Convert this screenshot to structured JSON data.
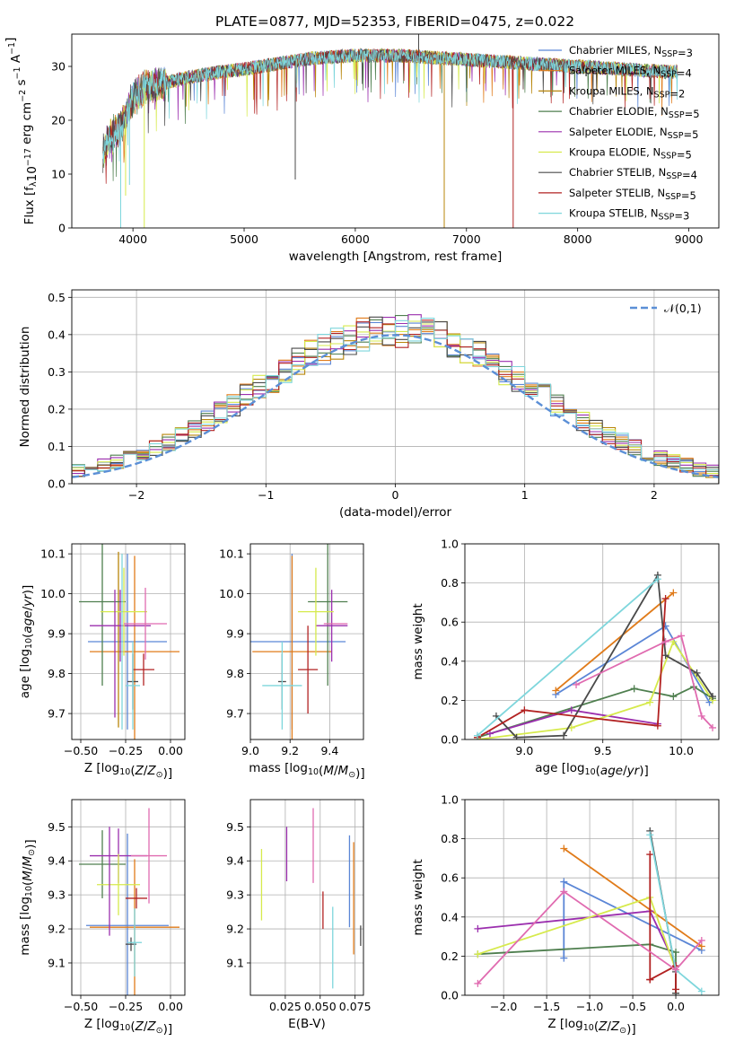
{
  "figure": {
    "title": "PLATE=0877, MJD=52353, FIBERID=0475, z=0.022"
  },
  "models": [
    {
      "name": "Chabrier MILES",
      "nssp": 3,
      "color": "#5b86d6"
    },
    {
      "name": "Salpeter MILES",
      "nssp": 4,
      "color": "#e07b1a"
    },
    {
      "name": "Kroupa MILES",
      "nssp": 2,
      "color": "#b8860b"
    },
    {
      "name": "Chabrier ELODIE",
      "nssp": 5,
      "color": "#4f7f4f"
    },
    {
      "name": "Salpeter ELODIE",
      "nssp": 5,
      "color": "#9b2fae"
    },
    {
      "name": "Kroupa ELODIE",
      "nssp": 5,
      "color": "#d6ea4c"
    },
    {
      "name": "Chabrier STELIB",
      "nssp": 4,
      "color": "#4a4a4a"
    },
    {
      "name": "Salpeter STELIB",
      "nssp": 5,
      "color": "#b22222"
    },
    {
      "name": "Kroupa STELIB",
      "nssp": 3,
      "color": "#7ed6dc"
    }
  ],
  "chart_data": [
    {
      "id": "spectrum",
      "type": "line",
      "xlabel": "wavelength [Angstrom, rest frame]",
      "ylabel": "Flux [f_λ10^-17 erg cm^-2 s^-1 A^-1]",
      "xlim": [
        3450,
        9270
      ],
      "ylim": [
        0,
        36
      ],
      "xticks": [
        4000,
        5000,
        6000,
        7000,
        8000,
        9000
      ],
      "yticks": [
        0,
        10,
        20,
        30
      ],
      "grid": false,
      "legend_position": "top-right",
      "continuum": [
        [
          3730,
          14
        ],
        [
          3800,
          17
        ],
        [
          3900,
          19
        ],
        [
          4000,
          24
        ],
        [
          4100,
          26
        ],
        [
          4300,
          27
        ],
        [
          4500,
          28
        ],
        [
          4800,
          29
        ],
        [
          5000,
          29.5
        ],
        [
          5300,
          30.5
        ],
        [
          5600,
          31.5
        ],
        [
          6000,
          32
        ],
        [
          6400,
          32
        ],
        [
          6800,
          31.5
        ],
        [
          7200,
          31
        ],
        [
          7600,
          30.5
        ],
        [
          8000,
          30
        ],
        [
          8400,
          29.5
        ],
        [
          8800,
          29
        ],
        [
          8900,
          29
        ]
      ],
      "dips": [
        [
          3934,
          6
        ],
        [
          3969,
          8
        ],
        [
          4102,
          0
        ],
        [
          3890,
          0
        ],
        [
          5460,
          9
        ],
        [
          6800,
          0
        ],
        [
          7420,
          0
        ]
      ],
      "spikes": [
        [
          6570,
          36
        ]
      ]
    },
    {
      "id": "residuals",
      "type": "step",
      "xlabel": "(data-model)/error",
      "ylabel": "Normed distribution",
      "xlim": [
        -2.5,
        2.5
      ],
      "ylim": [
        0,
        0.52
      ],
      "xticks": [
        -2,
        -1,
        0,
        1,
        2
      ],
      "yticks": [
        0.0,
        0.1,
        0.2,
        0.3,
        0.4,
        0.5
      ],
      "grid": true,
      "bin_width": 0.1,
      "reference_curve": "𝒩(0,1)",
      "reference_color": "#5b8fd6",
      "legend_position": "top-right"
    },
    {
      "id": "age-vs-Z",
      "type": "errorbar",
      "xlabel": "Z [log10(Z/Z⊙)]",
      "ylabel": "age [log10(age/yr)]",
      "xlim": [
        -0.55,
        0.08
      ],
      "ylim": [
        9.635,
        10.125
      ],
      "xticks": [
        -0.5,
        -0.25,
        0.0
      ],
      "yticks": [
        9.7,
        9.8,
        9.9,
        10.0,
        10.1
      ],
      "grid": true,
      "points": [
        {
          "model": 0,
          "x": -0.24,
          "xerr": 0.22,
          "y": 9.88,
          "yerr": 0.22
        },
        {
          "model": 1,
          "x": -0.2,
          "xerr": 0.25,
          "y": 9.855,
          "yerr": 0.24
        },
        {
          "model": 2,
          "x": -0.29,
          "xerr": 0.0,
          "y": 9.885,
          "yerr": 0.22
        },
        {
          "model": 3,
          "x": -0.38,
          "xerr": 0.13,
          "y": 9.98,
          "yerr": 0.21
        },
        {
          "model": 4,
          "x": -0.28,
          "xerr": 0.17,
          "y": 9.92,
          "yerr": 0.09
        },
        {
          "model": 5,
          "x": -0.26,
          "xerr": 0.13,
          "y": 9.955,
          "yerr": 0.11
        },
        {
          "model": 6,
          "x": -0.21,
          "xerr": 0.03,
          "y": 9.78,
          "yerr": 0.07
        },
        {
          "model": 7,
          "x": -0.15,
          "xerr": 0.06,
          "y": 9.81,
          "yerr": 0.04
        },
        {
          "model": 8,
          "x": -0.21,
          "xerr": 0.04,
          "y": 9.77,
          "yerr": 0.11
        }
      ],
      "extra_points": [
        {
          "model": 4,
          "x": -0.31,
          "xerr": 0.0,
          "y": 9.85,
          "yerr": 0.16
        },
        {
          "model": 8,
          "x": -0.27,
          "xerr": 0.0,
          "y": 9.88,
          "yerr": 0.22
        },
        {
          "model": 9,
          "x": -0.14,
          "xerr": 0.12,
          "y": 9.925,
          "yerr": 0.09
        }
      ]
    },
    {
      "id": "age-vs-mass",
      "type": "errorbar",
      "xlabel": "mass [log10(M/M⊙)]",
      "ylabel": "",
      "xlim": [
        9.0,
        9.57
      ],
      "ylim": [
        9.635,
        10.125
      ],
      "xticks": [
        9.0,
        9.2,
        9.4
      ],
      "yticks": [
        9.7,
        9.8,
        9.9,
        10.0,
        10.1
      ],
      "grid": true,
      "points": [
        {
          "model": 0,
          "x": 9.21,
          "xerr": 0.27,
          "y": 9.88,
          "yerr": 0.22
        },
        {
          "model": 1,
          "x": 9.21,
          "xerr": 0.2,
          "y": 9.855,
          "yerr": 0.24
        },
        {
          "model": 3,
          "x": 9.39,
          "xerr": 0.1,
          "y": 9.98,
          "yerr": 0.21
        },
        {
          "model": 4,
          "x": 9.41,
          "xerr": 0.08,
          "y": 9.92,
          "yerr": 0.09
        },
        {
          "model": 5,
          "x": 9.33,
          "xerr": 0.09,
          "y": 9.955,
          "yerr": 0.11
        },
        {
          "model": 6,
          "x": 9.16,
          "xerr": 0.02,
          "y": 9.78,
          "yerr": 0.07
        },
        {
          "model": 7,
          "x": 9.29,
          "xerr": 0.05,
          "y": 9.81,
          "yerr": 0.11
        },
        {
          "model": 8,
          "x": 9.16,
          "xerr": 0.1,
          "y": 9.77,
          "yerr": 0.11
        }
      ],
      "extra_points": [
        {
          "model": 9,
          "x": 9.43,
          "xerr": 0.06,
          "y": 9.925,
          "yerr": 0.0
        }
      ]
    },
    {
      "id": "mass-weight-vs-age",
      "type": "line",
      "xlabel": "age [log10(age/yr)]",
      "ylabel": "mass weight",
      "xlim": [
        8.62,
        10.24
      ],
      "ylim": [
        0,
        1.0
      ],
      "xticks": [
        9.0,
        9.5,
        10.0
      ],
      "yticks": [
        0.0,
        0.2,
        0.4,
        0.6,
        0.8,
        1.0
      ],
      "grid": true,
      "series": [
        {
          "model": 0,
          "points": [
            [
              9.2,
              0.23
            ],
            [
              9.9,
              0.58
            ],
            [
              10.18,
              0.19
            ]
          ]
        },
        {
          "model": 1,
          "points": [
            [
              9.2,
              0.25
            ],
            [
              9.95,
              0.75
            ]
          ]
        },
        {
          "model": 3,
          "points": [
            [
              8.7,
              0.01
            ],
            [
              9.7,
              0.26
            ],
            [
              9.95,
              0.22
            ],
            [
              10.08,
              0.27
            ],
            [
              10.2,
              0.21
            ]
          ]
        },
        {
          "model": 4,
          "points": [
            [
              8.78,
              0.03
            ],
            [
              9.3,
              0.15
            ],
            [
              9.85,
              0.08
            ]
          ]
        },
        {
          "model": 5,
          "points": [
            [
              8.7,
              0.0
            ],
            [
              9.3,
              0.06
            ],
            [
              9.8,
              0.19
            ],
            [
              9.95,
              0.5
            ],
            [
              10.2,
              0.2
            ]
          ]
        },
        {
          "model": 6,
          "points": [
            [
              8.82,
              0.12
            ],
            [
              8.95,
              0.01
            ],
            [
              9.25,
              0.02
            ],
            [
              9.85,
              0.84
            ],
            [
              9.9,
              0.43
            ],
            [
              10.1,
              0.34
            ],
            [
              10.2,
              0.22
            ]
          ]
        },
        {
          "model": 7,
          "points": [
            [
              8.7,
              0.01
            ],
            [
              9.0,
              0.15
            ],
            [
              9.85,
              0.07
            ],
            [
              9.9,
              0.72
            ]
          ]
        },
        {
          "model": 8,
          "points": [
            [
              8.7,
              0.02
            ],
            [
              9.85,
              0.82
            ]
          ]
        },
        {
          "model": 9,
          "points": [
            [
              9.33,
              0.28
            ],
            [
              9.9,
              0.5
            ],
            [
              10.0,
              0.53
            ],
            [
              10.13,
              0.12
            ],
            [
              10.2,
              0.06
            ]
          ]
        }
      ]
    },
    {
      "id": "mass-vs-Z",
      "type": "errorbar",
      "xlabel": "Z [log10(Z/Z⊙)]",
      "ylabel": "mass [log10(M/M⊙)]",
      "xlim": [
        -0.55,
        0.08
      ],
      "ylim": [
        9.005,
        9.58
      ],
      "xticks": [
        -0.5,
        -0.25,
        0.0
      ],
      "yticks": [
        9.1,
        9.2,
        9.3,
        9.4,
        9.5
      ],
      "grid": true,
      "points": [
        {
          "model": 0,
          "x": -0.24,
          "xerr": 0.23,
          "y": 9.21,
          "yerr": 0.27
        },
        {
          "model": 1,
          "x": -0.2,
          "xerr": 0.25,
          "y": 9.205,
          "yerr": 0.2
        },
        {
          "model": 3,
          "x": -0.38,
          "xerr": 0.13,
          "y": 9.39,
          "yerr": 0.1
        },
        {
          "model": 4,
          "x": -0.29,
          "xerr": 0.16,
          "y": 9.415,
          "yerr": 0.08
        },
        {
          "model": 5,
          "x": -0.29,
          "xerr": 0.12,
          "y": 9.33,
          "yerr": 0.09
        },
        {
          "model": 6,
          "x": -0.22,
          "xerr": 0.03,
          "y": 9.155,
          "yerr": 0.02
        },
        {
          "model": 7,
          "x": -0.19,
          "xerr": 0.06,
          "y": 9.29,
          "yerr": 0.03
        },
        {
          "model": 8,
          "x": -0.2,
          "xerr": 0.04,
          "y": 9.16,
          "yerr": 0.1
        }
      ],
      "extra_points": [
        {
          "model": 4,
          "x": -0.34,
          "xerr": 0.0,
          "y": 9.34,
          "yerr": 0.16
        },
        {
          "model": 9,
          "x": -0.12,
          "xerr": 0.1,
          "y": 9.415,
          "yerr": 0.14
        }
      ]
    },
    {
      "id": "mass-vs-EBV",
      "type": "errorbar",
      "xlabel": "E(B-V)",
      "ylabel": "",
      "xlim": [
        0.0,
        0.081
      ],
      "ylim": [
        9.005,
        9.58
      ],
      "xticks": [
        0.025,
        0.05,
        0.075
      ],
      "yticks": [
        9.1,
        9.2,
        9.3,
        9.4,
        9.5
      ],
      "grid": true,
      "points": [
        {
          "model": 0,
          "x": 0.071,
          "xerr": 0.0,
          "y": 9.34,
          "yerr": 0.135
        },
        {
          "model": 1,
          "x": 0.074,
          "xerr": 0.0,
          "y": 9.29,
          "yerr": 0.165
        },
        {
          "model": 4,
          "x": 0.026,
          "xerr": 0.0,
          "y": 9.42,
          "yerr": 0.08
        },
        {
          "model": 5,
          "x": 0.008,
          "xerr": 0.0,
          "y": 9.33,
          "yerr": 0.105
        },
        {
          "model": 6,
          "x": 0.079,
          "xerr": 0.0,
          "y": 9.18,
          "yerr": 0.03
        },
        {
          "model": 7,
          "x": 0.052,
          "xerr": 0.0,
          "y": 9.255,
          "yerr": 0.055
        },
        {
          "model": 8,
          "x": 0.059,
          "xerr": 0.0,
          "y": 9.145,
          "yerr": 0.12
        }
      ],
      "extra_points": [
        {
          "model": 9,
          "x": 0.045,
          "xerr": 0.0,
          "y": 9.445,
          "yerr": 0.11
        }
      ]
    },
    {
      "id": "mass-weight-vs-Z",
      "type": "line",
      "xlabel": "Z [log10(Z/Z⊙)]",
      "ylabel": "mass weight",
      "xlim": [
        -2.45,
        0.5
      ],
      "ylim": [
        0,
        1.0
      ],
      "xticks": [
        -2.0,
        -1.5,
        -1.0,
        -0.5,
        0.0
      ],
      "yticks": [
        0.0,
        0.2,
        0.4,
        0.6,
        0.8,
        1.0
      ],
      "grid": true,
      "series": [
        {
          "model": 0,
          "points": [
            [
              -1.3,
              0.19
            ],
            [
              -1.3,
              0.58
            ],
            [
              0.3,
              0.23
            ]
          ]
        },
        {
          "model": 1,
          "points": [
            [
              -1.3,
              0.75
            ],
            [
              0.3,
              0.25
            ]
          ]
        },
        {
          "model": 3,
          "points": [
            [
              -2.3,
              0.21
            ],
            [
              -0.3,
              0.26
            ],
            [
              0.0,
              0.22
            ],
            [
              0.0,
              0.01
            ]
          ]
        },
        {
          "model": 4,
          "points": [
            [
              -2.3,
              0.34
            ],
            [
              -0.3,
              0.43
            ],
            [
              0.0,
              0.15
            ]
          ]
        },
        {
          "model": 5,
          "points": [
            [
              -2.3,
              0.21
            ],
            [
              -0.3,
              0.5
            ],
            [
              0.0,
              0.13
            ]
          ]
        },
        {
          "model": 6,
          "points": [
            [
              -0.3,
              0.84
            ],
            [
              0.0,
              0.12
            ],
            [
              0.0,
              0.01
            ]
          ]
        },
        {
          "model": 7,
          "points": [
            [
              -0.3,
              0.08
            ],
            [
              -0.3,
              0.72
            ],
            [
              -0.3,
              0.08
            ],
            [
              0.0,
              0.15
            ],
            [
              0.0,
              0.03
            ]
          ]
        },
        {
          "model": 8,
          "points": [
            [
              -0.3,
              0.82
            ],
            [
              0.0,
              0.13
            ],
            [
              0.3,
              0.02
            ]
          ]
        },
        {
          "model": 9,
          "points": [
            [
              -2.3,
              0.06
            ],
            [
              -1.3,
              0.53
            ],
            [
              0.0,
              0.13
            ],
            [
              0.3,
              0.28
            ]
          ]
        }
      ]
    }
  ],
  "extra_colors": [
    "#e06bb0"
  ]
}
